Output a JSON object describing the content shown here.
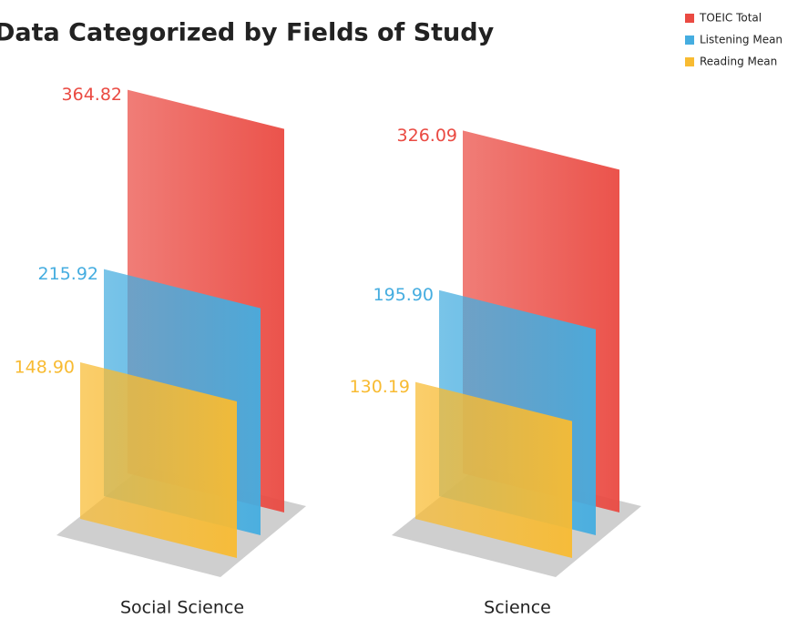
{
  "chart_data": {
    "type": "bar3d",
    "title": "Data Categorized by Fields of Study",
    "categories": [
      "Social Science",
      "Science"
    ],
    "series": [
      {
        "name": "TOEIC Total",
        "color": "#ea4a42",
        "values": [
          364.82,
          326.09
        ],
        "value_labels": [
          "364.82",
          "326.09"
        ]
      },
      {
        "name": "Listening Mean",
        "color": "#45ade0",
        "values": [
          215.92,
          195.9
        ],
        "value_labels": [
          "215.92",
          "195.90"
        ]
      },
      {
        "name": "Reading Mean",
        "color": "#f8bb32",
        "values": [
          148.9,
          130.19
        ],
        "value_labels": [
          "148.90",
          "130.19"
        ]
      }
    ],
    "legend": "top-right"
  }
}
